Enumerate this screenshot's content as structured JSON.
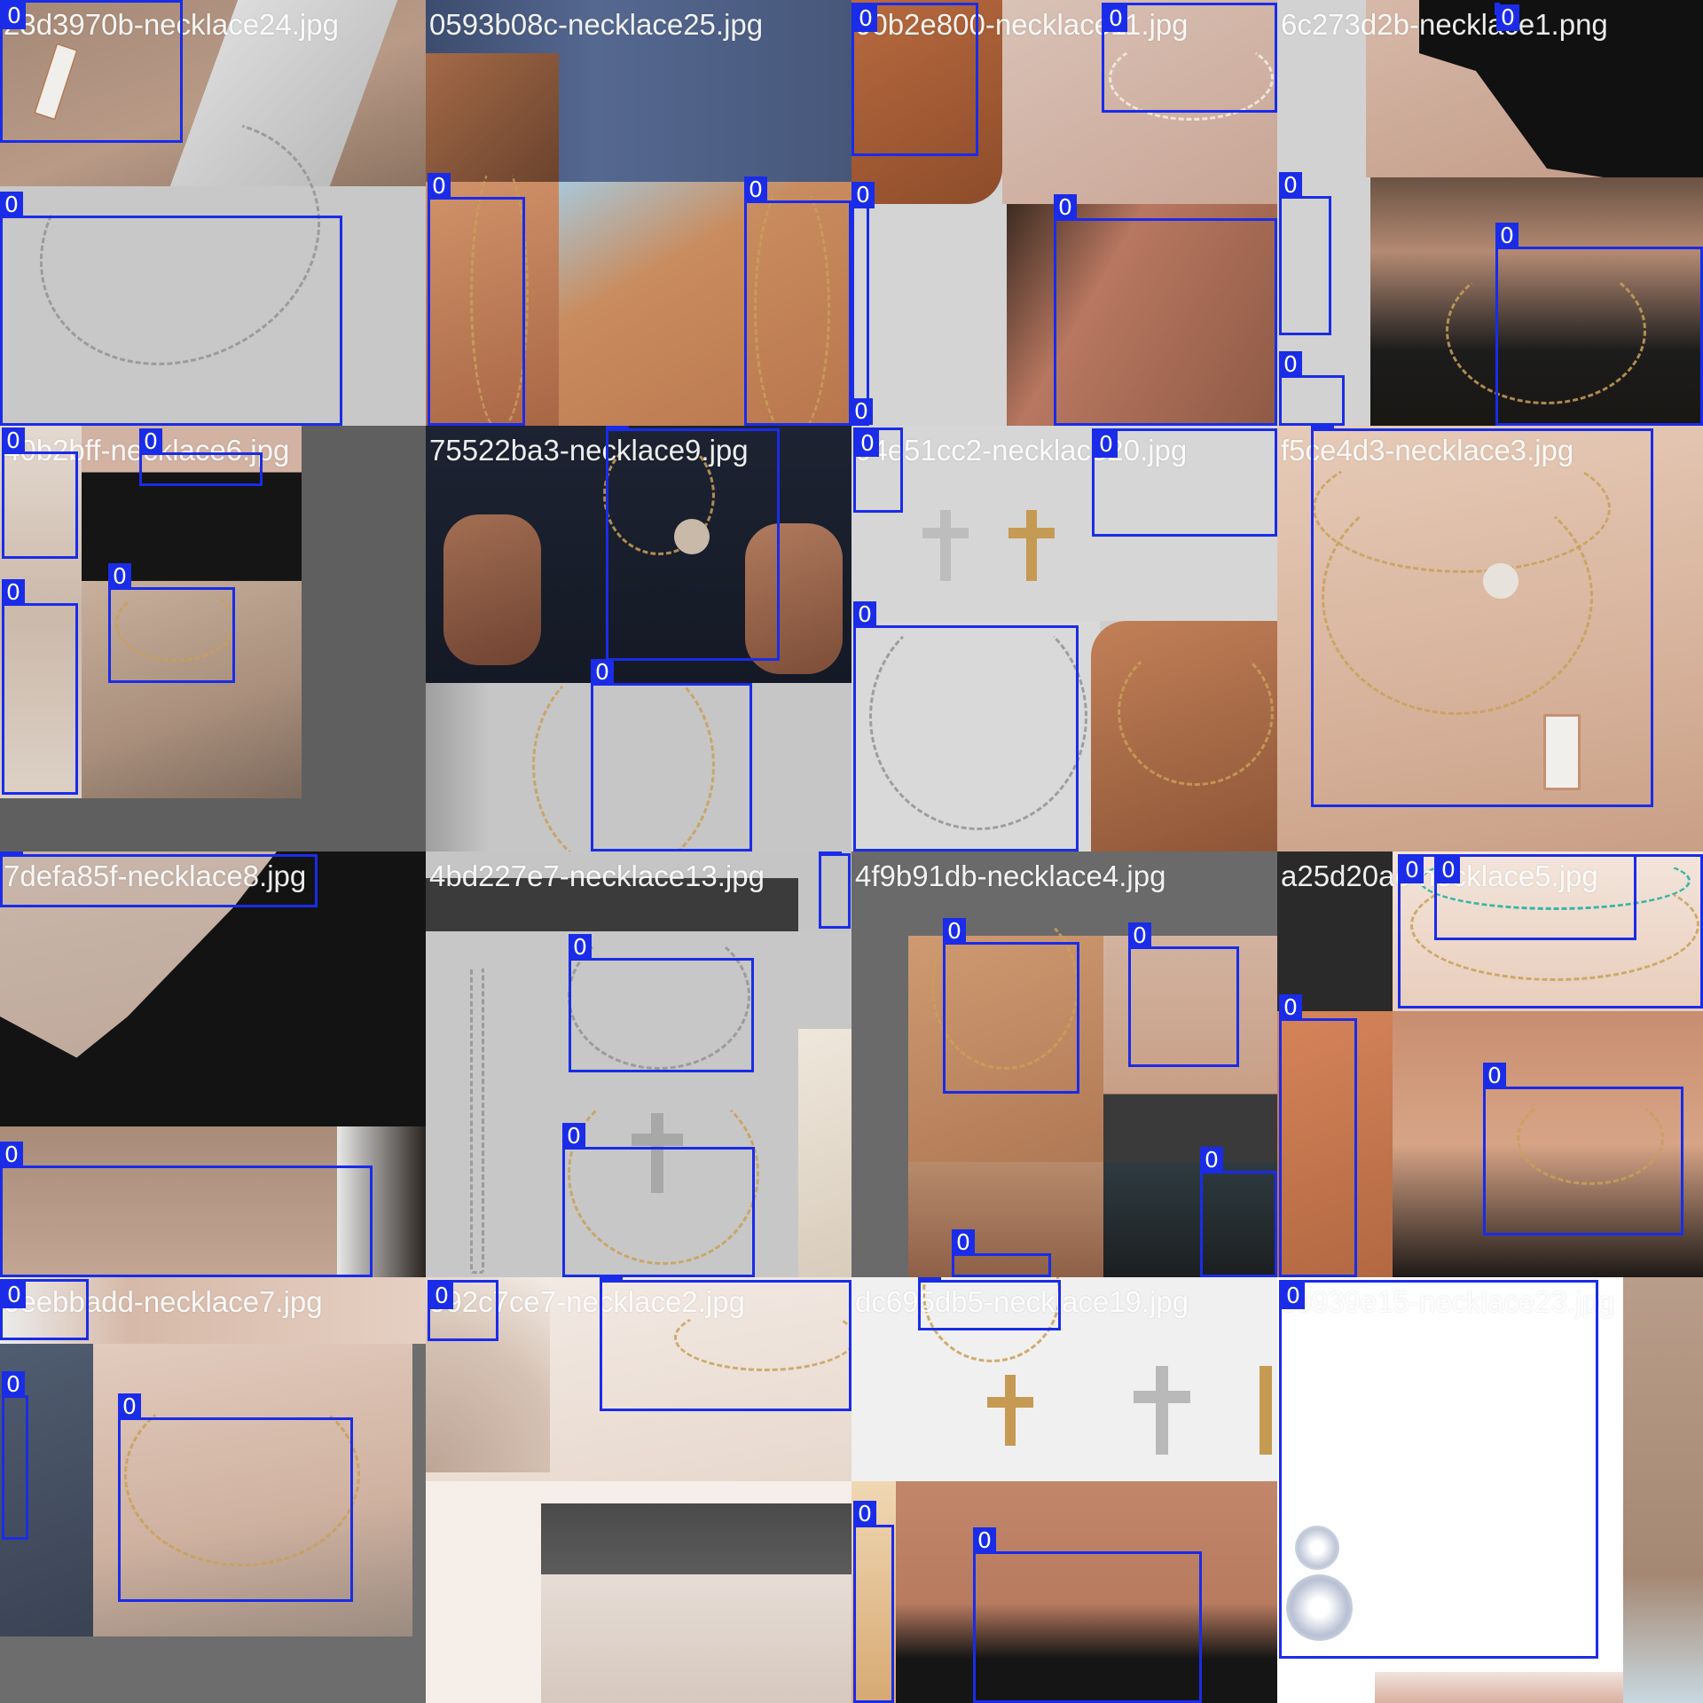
{
  "mosaic": {
    "cells": [
      {
        "filename": "23d3970b-necklace24.jpg",
        "boxes": [
          "0",
          "0"
        ]
      },
      {
        "filename": "0593b08c-necklace25.jpg",
        "boxes": [
          "0",
          "0"
        ]
      },
      {
        "filename": "00b2e800-necklace11.jpg",
        "boxes": [
          "0",
          "0",
          "0",
          "0",
          "0"
        ]
      },
      {
        "filename": "6c273d2b-necklace1.png",
        "boxes": [
          "0",
          "0",
          "0",
          "0"
        ]
      },
      {
        "filename": "40b2bff-necklace6.jpg",
        "boxes": [
          "0",
          "0",
          "0",
          "0"
        ]
      },
      {
        "filename": "75522ba3-necklace9.jpg",
        "boxes": [
          "0",
          "0"
        ]
      },
      {
        "filename": "04e51cc2-necklace20.jpg",
        "boxes": [
          "0",
          "0",
          "0"
        ]
      },
      {
        "filename": "f5ce4d3-necklace3.jpg",
        "boxes": [
          "0"
        ]
      },
      {
        "filename": "7defa85f-necklace8.jpg",
        "boxes": [
          "0",
          "0"
        ]
      },
      {
        "filename": "4bd227e7-necklace13.jpg",
        "boxes": [
          "0",
          "0",
          "0"
        ]
      },
      {
        "filename": "4f9b91db-necklace4.jpg",
        "boxes": [
          "0",
          "0",
          "0",
          "0"
        ]
      },
      {
        "filename": "a25d20ac-necklace5.jpg",
        "boxes": [
          "0",
          "0",
          "0",
          "0"
        ]
      },
      {
        "filename": "0eebbadd-necklace7.jpg",
        "boxes": [
          "0",
          "0",
          "0"
        ]
      },
      {
        "filename": "592c7ce7-necklace2.jpg",
        "boxes": [
          "0",
          "0"
        ]
      },
      {
        "filename": "dc695db5-necklace19.jpg",
        "boxes": [
          "0",
          "0",
          "0"
        ]
      },
      {
        "filename": "c9939e15-necklace23.jpg",
        "boxes": [
          "0"
        ]
      }
    ]
  },
  "colors": {
    "box": "#1a2ce8",
    "label_text": "#ffffff",
    "filename_text": "#ffffff"
  }
}
